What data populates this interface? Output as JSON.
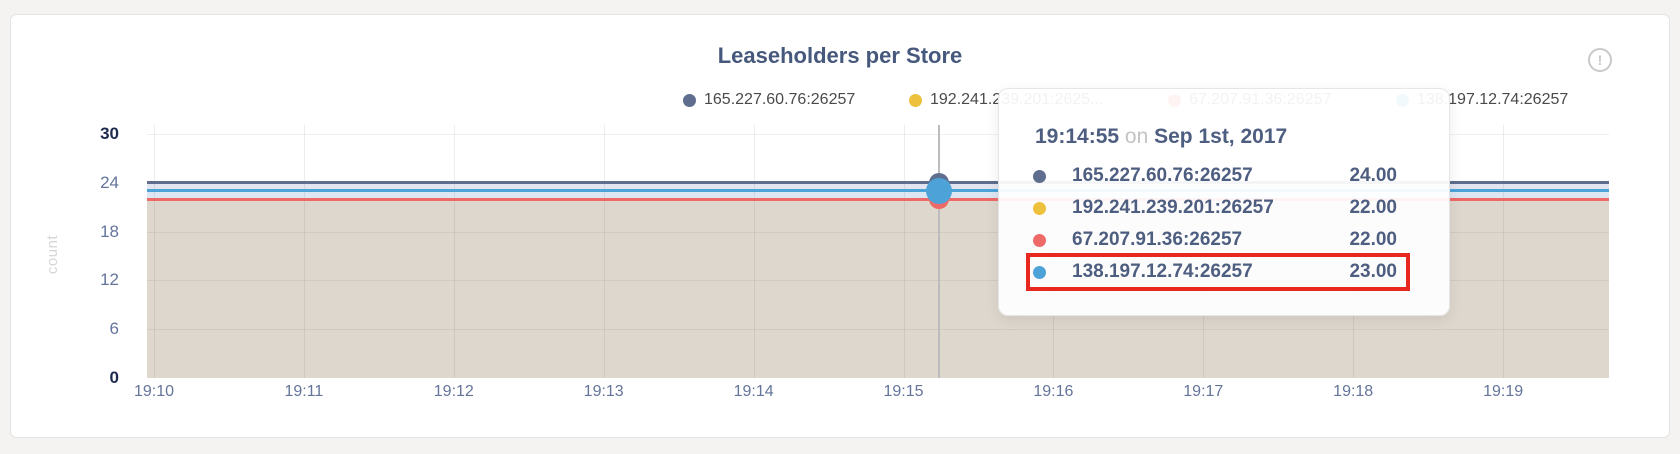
{
  "card": {
    "title": "Leaseholders per Store",
    "info_glyph": "!"
  },
  "legend": {
    "items": [
      {
        "label": "165.227.60.76:26257",
        "color": "#5f6e8e"
      },
      {
        "label": "192.241.239.201:2625...",
        "color": "#eec13d"
      },
      {
        "label": "67.207.91.36:26257",
        "color": "#ee6a68"
      },
      {
        "label": "138.197.12.74:26257",
        "color": "#4da3d8"
      }
    ]
  },
  "chart_data": {
    "type": "area",
    "title": "Leaseholders per Store",
    "xlabel": "",
    "ylabel": "count",
    "x_ticks": [
      "19:10",
      "19:11",
      "19:12",
      "19:13",
      "19:14",
      "19:15",
      "19:16",
      "19:17",
      "19:18",
      "19:19"
    ],
    "y_ticks": [
      0,
      6,
      12,
      18,
      24,
      30
    ],
    "ylim": [
      0,
      30
    ],
    "grid": true,
    "legend_position": "top",
    "series": [
      {
        "name": "165.227.60.76:26257",
        "color": "#5f6e8e",
        "value": 24,
        "values_constant": true
      },
      {
        "name": "192.241.239.201:26257",
        "color": "#eec13d",
        "value": 22,
        "values_constant": true
      },
      {
        "name": "67.207.91.36:26257",
        "color": "#ee6a68",
        "value": 22,
        "values_constant": true
      },
      {
        "name": "138.197.12.74:26257",
        "color": "#4da3d8",
        "value": 23,
        "values_constant": true
      }
    ],
    "bands": [
      {
        "top": 24,
        "bottom": 23,
        "color": "#e2e5ef"
      },
      {
        "top": 23,
        "bottom": 22,
        "color": "#dde7f3"
      },
      {
        "top": 22,
        "bottom": 0,
        "color": "#ded7ce"
      }
    ],
    "hover": {
      "time": "19:14:55",
      "x_fraction": 0.542
    }
  },
  "tooltip": {
    "time": "19:14:55",
    "conjunction": "on",
    "date": "Sep 1st, 2017",
    "highlight_color": "#e8271f",
    "rows": [
      {
        "name": "165.227.60.76:26257",
        "value": "24.00",
        "color": "#5f6e8e",
        "highlighted": false
      },
      {
        "name": "192.241.239.201:26257",
        "value": "22.00",
        "color": "#eec13d",
        "highlighted": false
      },
      {
        "name": "67.207.91.36:26257",
        "value": "22.00",
        "color": "#ee6a68",
        "highlighted": false
      },
      {
        "name": "138.197.12.74:26257",
        "value": "23.00",
        "color": "#4da3d8",
        "highlighted": true
      }
    ]
  }
}
